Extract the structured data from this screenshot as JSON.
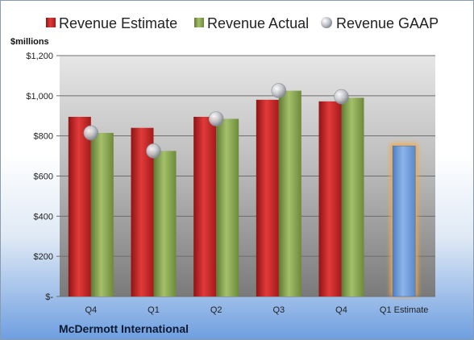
{
  "chart_data": {
    "type": "bar",
    "unit_label": "$millions",
    "company": "McDermott International",
    "categories": [
      "Q4",
      "Q1",
      "Q2",
      "Q3",
      "Q4",
      "Q1 Estimate"
    ],
    "series": [
      {
        "name": "Revenue Estimate",
        "kind": "bar",
        "values": [
          895,
          840,
          895,
          980,
          972,
          null
        ],
        "color": "#cc2222"
      },
      {
        "name": "Revenue Actual",
        "kind": "bar",
        "values": [
          815,
          725,
          885,
          1025,
          990,
          null
        ],
        "color": "#8aa852"
      },
      {
        "name": "Revenue GAAP",
        "kind": "marker",
        "values": [
          815,
          725,
          885,
          1025,
          995,
          null
        ],
        "color": "#b8bcc4"
      },
      {
        "name": "",
        "kind": "bar",
        "values": [
          null,
          null,
          null,
          null,
          null,
          750
        ],
        "color": "#6f9fdc",
        "highlight": "#f4a94a"
      }
    ],
    "ylim": [
      0,
      1200
    ],
    "yticks": [
      {
        "value": 0,
        "label": "$-"
      },
      {
        "value": 200,
        "label": "$200"
      },
      {
        "value": 400,
        "label": "$400"
      },
      {
        "value": 600,
        "label": "$600"
      },
      {
        "value": 800,
        "label": "$800"
      },
      {
        "value": 1000,
        "label": "$1,000"
      },
      {
        "value": 1200,
        "label": "$1,200"
      }
    ],
    "grid": true,
    "legend_position": "top"
  }
}
